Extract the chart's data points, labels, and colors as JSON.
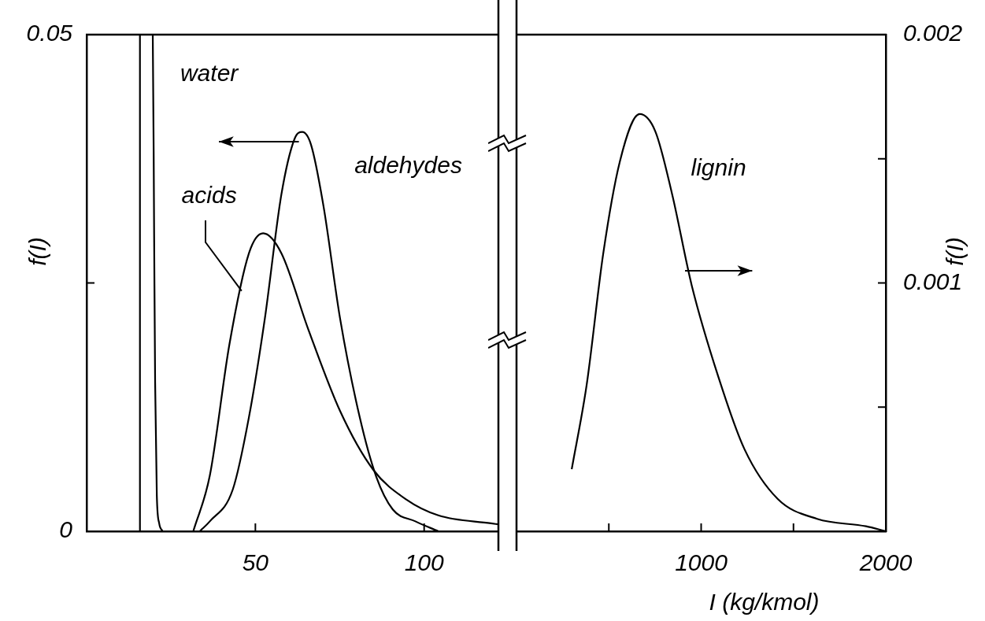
{
  "chart_data": [
    {
      "type": "line",
      "ylabel": "f(I)",
      "xlim": [
        0,
        122
      ],
      "ylim": [
        0,
        0.05
      ],
      "xticks": [
        50,
        100
      ],
      "yticks": [
        0,
        {
          "value": 0.025,
          "label": null
        },
        0.05
      ],
      "series": [
        {
          "name": "water",
          "color": "#000000",
          "x": [
            15.8,
            15.8,
            19.6,
            20,
            20.3,
            20.8,
            21.5,
            22.5
          ],
          "values": [
            0,
            0.05,
            0.05,
            0.03,
            0.015,
            0.0036,
            0.0008,
            0
          ]
        },
        {
          "name": "acids",
          "color": "#000000",
          "x": [
            31.6,
            36.5,
            42.3,
            48.1,
            52.3,
            57.7,
            65.6,
            75.1,
            84.9,
            94.7,
            104.2,
            119.8,
            122
          ],
          "values": [
            0,
            0.0056,
            0.0188,
            0.028,
            0.03,
            0.028,
            0.0204,
            0.0121,
            0.0062,
            0.0032,
            0.0016,
            0.0008,
            0.0007
          ]
        },
        {
          "name": "aldehydes",
          "color": "#000000",
          "x": [
            33.5,
            36.5,
            43.3,
            48.1,
            52.8,
            57.7,
            61.6,
            63.9,
            66.5,
            70.2,
            75.1,
            80.9,
            85.8,
            90.7,
            97.4,
            104.2
          ],
          "values": [
            0,
            0.001,
            0.0042,
            0.0115,
            0.0214,
            0.0339,
            0.0395,
            0.0402,
            0.0389,
            0.0327,
            0.0214,
            0.0115,
            0.0055,
            0.0022,
            0.001,
            0
          ]
        }
      ]
    },
    {
      "type": "line",
      "xlabel": "I (kg/kmol)",
      "y2label": "f(I)",
      "xlim": [
        0,
        2000
      ],
      "y2lim": [
        0,
        0.002
      ],
      "xticks": [
        {
          "value": 500,
          "label": null
        },
        1000,
        {
          "value": 1500,
          "label": null
        },
        2000
      ],
      "y2ticks": [
        {
          "value": 0.0005,
          "label": null
        },
        0.001,
        {
          "value": 0.0015,
          "label": null
        },
        0.002
      ],
      "series": [
        {
          "name": "lignin",
          "color": "#000000",
          "axis": "y2",
          "x": [
            299,
            380,
            470,
            560,
            667,
            752,
            842,
            949,
            1094,
            1235,
            1415,
            1628,
            1893,
            2000
          ],
          "values": [
            0.00025,
            0.00059,
            0.00112,
            0.00149,
            0.00168,
            0.00161,
            0.00136,
            0.00099,
            0.00062,
            0.00033,
            0.00013,
            5e-05,
            2e-05,
            0
          ]
        }
      ]
    }
  ]
}
